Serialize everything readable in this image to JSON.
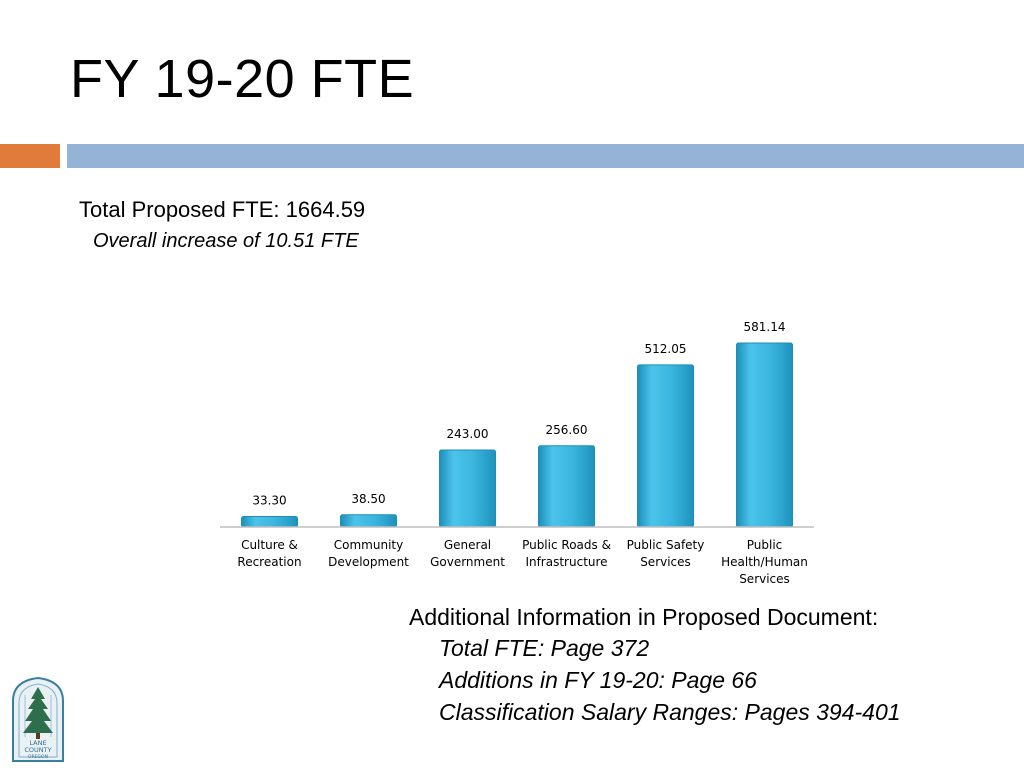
{
  "slide": {
    "title": "FY 19-20 FTE",
    "total_line": "Total Proposed FTE: 1664.59",
    "increase_line": "Overall increase of 10.51 FTE"
  },
  "info": {
    "heading": "Additional Information in Proposed Document:",
    "items": [
      "Total FTE: Page 372",
      "Additions in FY 19-20: Page 66",
      "Classification Salary Ranges: Pages 394-401"
    ]
  },
  "logo": {
    "name": "lane-county-logo",
    "text": "LANE COUNTY OREGON"
  },
  "colors": {
    "accent_orange": "#E07B39",
    "accent_blue": "#95B3D7",
    "bar_fill": "#35B4DE",
    "bar_edge": "#1C8FB8"
  },
  "chart_data": {
    "type": "bar",
    "categories": [
      [
        "Culture &",
        "Recreation"
      ],
      [
        "Community",
        "Development"
      ],
      [
        "General",
        "Government"
      ],
      [
        "Public Roads &",
        "Infrastructure"
      ],
      [
        "Public Safety",
        "Services"
      ],
      [
        "Public",
        "Health/Human",
        "Services"
      ]
    ],
    "values": [
      33.3,
      38.5,
      243.0,
      256.6,
      512.05,
      581.14
    ],
    "data_labels": [
      "33.30",
      "38.50",
      "243.00",
      "256.60",
      "512.05",
      "581.14"
    ],
    "ylim": [
      0,
      581.14
    ],
    "grid": false,
    "legend": "none"
  }
}
